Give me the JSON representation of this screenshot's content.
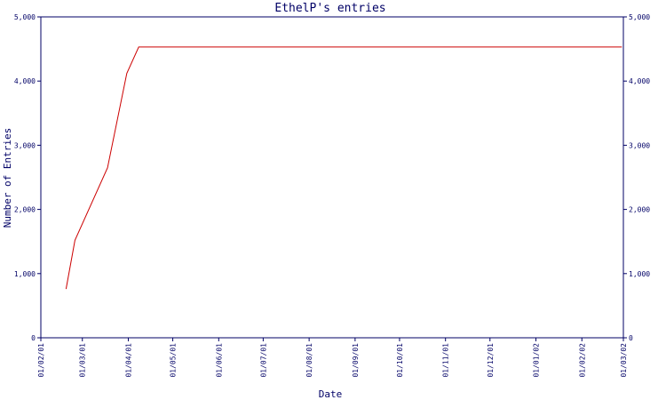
{
  "chart_data": {
    "type": "line",
    "title": "EthelP's entries",
    "xlabel": "Date",
    "ylabel": "Number of Entries",
    "ylim": [
      0,
      5000
    ],
    "yticks": [
      0,
      1000,
      2000,
      3000,
      4000,
      5000
    ],
    "ytick_labels": [
      "0",
      "1,000",
      "2,000",
      "3,000",
      "4,000",
      "5,000"
    ],
    "x_tick_labels": [
      "01/02/01",
      "01/03/01",
      "01/04/01",
      "01/05/01",
      "01/06/01",
      "01/07/01",
      "01/08/01",
      "01/09/01",
      "01/10/01",
      "01/11/01",
      "01/12/01",
      "01/01/02",
      "01/02/02",
      "01/03/02"
    ],
    "x_tick_dates": [
      "2001-02-01",
      "2001-03-01",
      "2001-04-01",
      "2001-05-01",
      "2001-06-01",
      "2001-07-01",
      "2001-08-01",
      "2001-09-01",
      "2001-10-01",
      "2001-11-01",
      "2001-12-01",
      "2002-01-01",
      "2002-02-01",
      "2002-03-01"
    ],
    "xlim": [
      "2001-02-01",
      "2002-03-01"
    ],
    "grid": false,
    "series": [
      {
        "x": [
          "2001-02-18",
          "2001-02-24",
          "2001-03-18",
          "2001-03-31",
          "2001-04-08",
          "2002-02-28"
        ],
        "values": [
          760,
          1520,
          2650,
          4120,
          4530,
          4530
        ]
      }
    ],
    "colors": {
      "line": "#cc0000",
      "axis": "#000066",
      "text": "#000066"
    }
  }
}
